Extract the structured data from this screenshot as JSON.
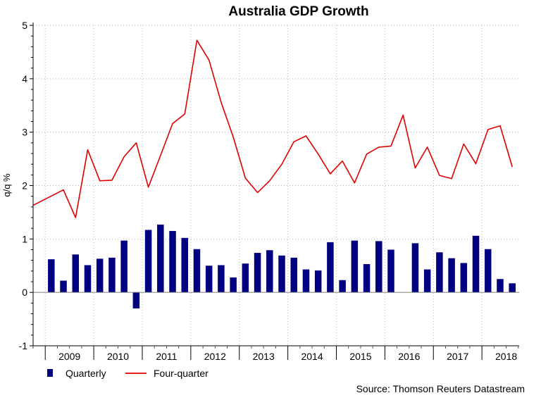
{
  "chart_data": {
    "type": "bar+line",
    "title": "Australia GDP Growth",
    "ylabel": "q/q %",
    "xlabel": "",
    "ylim": [
      -1,
      5
    ],
    "yticks": [
      "-1",
      "0",
      "1",
      "2",
      "3",
      "4",
      "5"
    ],
    "year_labels": [
      "2009",
      "2010",
      "2011",
      "2012",
      "2013",
      "2014",
      "2015",
      "2016",
      "2017",
      "2018"
    ],
    "grid": true,
    "legend": {
      "position": "bottom-left",
      "quarterly_label": "Quarterly",
      "fourquarter_label": "Four-quarter"
    },
    "source": "Source: Thomson Reuters Datastream",
    "colors": {
      "bar": "#000080",
      "line": "#e00000",
      "axis": "#000000",
      "grid": "#b8b8b8"
    },
    "series": [
      {
        "name": "Quarterly",
        "type": "bar",
        "values": [
          0.62,
          0.22,
          0.71,
          0.51,
          0.63,
          0.65,
          0.97,
          -0.3,
          1.17,
          1.27,
          1.15,
          1.02,
          0.81,
          0.5,
          0.51,
          0.28,
          0.54,
          0.74,
          0.79,
          0.69,
          0.65,
          0.43,
          0.41,
          0.94,
          0.23,
          0.97,
          0.53,
          0.96,
          0.8,
          0.0,
          0.92,
          0.43,
          0.75,
          0.64,
          0.55,
          1.06,
          0.81,
          0.25,
          0.17
        ]
      },
      {
        "name": "Four-quarter",
        "type": "line",
        "values": [
          1.63,
          1.92,
          1.4,
          2.67,
          2.09,
          2.1,
          2.54,
          2.8,
          1.97,
          2.56,
          3.16,
          3.34,
          4.72,
          4.35,
          3.56,
          2.91,
          2.14,
          1.87,
          2.09,
          2.4,
          2.82,
          2.93,
          2.59,
          2.22,
          2.46,
          2.05,
          2.59,
          2.72,
          2.74,
          3.32,
          2.33,
          2.72,
          2.19,
          2.13,
          2.78,
          2.41,
          3.05,
          3.12,
          2.35
        ]
      }
    ]
  }
}
